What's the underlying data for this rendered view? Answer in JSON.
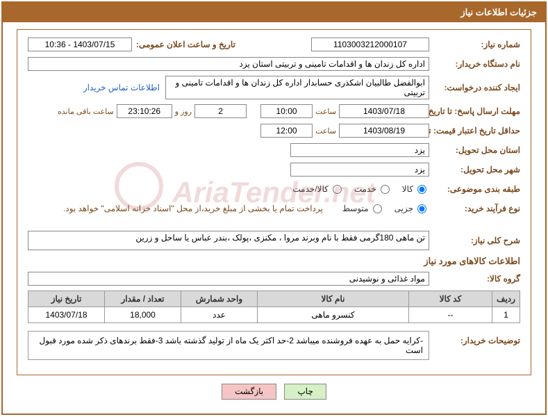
{
  "header": {
    "title": "جزئیات اطلاعات نیاز"
  },
  "labels": {
    "needNo": "شماره نیاز:",
    "announceDateTime": "تاریخ و ساعت اعلان عمومی:",
    "buyerOrg": "نام دستگاه خریدار:",
    "requester": "ایجاد کننده درخواست:",
    "contactLink": "اطلاعات تماس خریدار",
    "responseDeadline": "مهلت ارسال پاسخ: تا تاریخ:",
    "hour": "ساعت",
    "daysAnd": "روز و",
    "remaining": "ساعت باقی مانده",
    "minValidity": "حداقل تاریخ اعتبار قیمت: تا تاریخ:",
    "deliveryProvince": "استان محل تحویل:",
    "deliveryCity": "شهر محل تحویل:",
    "subjectClass": "طبقه بندی موضوعی:",
    "goods": "کالا",
    "service": "خدمت",
    "goodsService": "کالا/خدمت",
    "purchaseType": "نوع فرآیند خرید:",
    "partial": "جزیی",
    "medium": "متوسط",
    "paymentNote": "پرداخت تمام یا بخشی از مبلغ خرید،از محل \"اسناد خزانه اسلامی\" خواهد بود.",
    "needDesc": "شرح کلی نیاز:",
    "goodsInfo": "اطلاعات کالاهای مورد نیاز",
    "goodsGroup": "گروه کالا:",
    "buyerNotes": "توضیحات خریدار:"
  },
  "fields": {
    "needNo": "1103003212000107",
    "announceDateTime": "1403/07/15 - 10:36",
    "buyerOrg": "اداره کل زندان ها و اقدامات تامینی و تربیتی استان یزد",
    "requester": "ابوالفضل طالبیان اشکذری حسابدار اداره کل زندان ها و اقدامات تامینی و تربیتی",
    "respDate": "1403/07/18",
    "respHour": "10:00",
    "daysLeft": "2",
    "timeLeft": "23:10:26",
    "validDate": "1403/08/19",
    "validHour": "12:00",
    "province": "یزد",
    "city": "یزد",
    "needDesc": "تن ماهی 180گرمی فقط با نام وبرند مروا ، مکنزی ،پولک ،بندر عباس یا ساحل و زرین",
    "goodsGroup": "مواد غذائی و نوشیدنی",
    "buyerNotes": "-کرایه حمل به عهده فروشنده میباشد 2-حد اکثر یک ماه از تولید گذشته باشد 3-فقط برندهای ذکر شده مورد قبول است"
  },
  "radios": {
    "subject": "goods",
    "purchase": "partial"
  },
  "table": {
    "columns": [
      "ردیف",
      "کد کالا",
      "نام کالا",
      "واحد شمارش",
      "تعداد / مقدار",
      "تاریخ نیاز"
    ],
    "rows": [
      [
        "1",
        "--",
        "کنسرو ماهی",
        "عدد",
        "18,000",
        "1403/07/18"
      ]
    ]
  },
  "buttons": {
    "print": "چاپ",
    "back": "بازگشت"
  },
  "watermark": "AriaTender.net",
  "colWidths": [
    "40px",
    "120px",
    "auto",
    "110px",
    "110px",
    "110px"
  ]
}
